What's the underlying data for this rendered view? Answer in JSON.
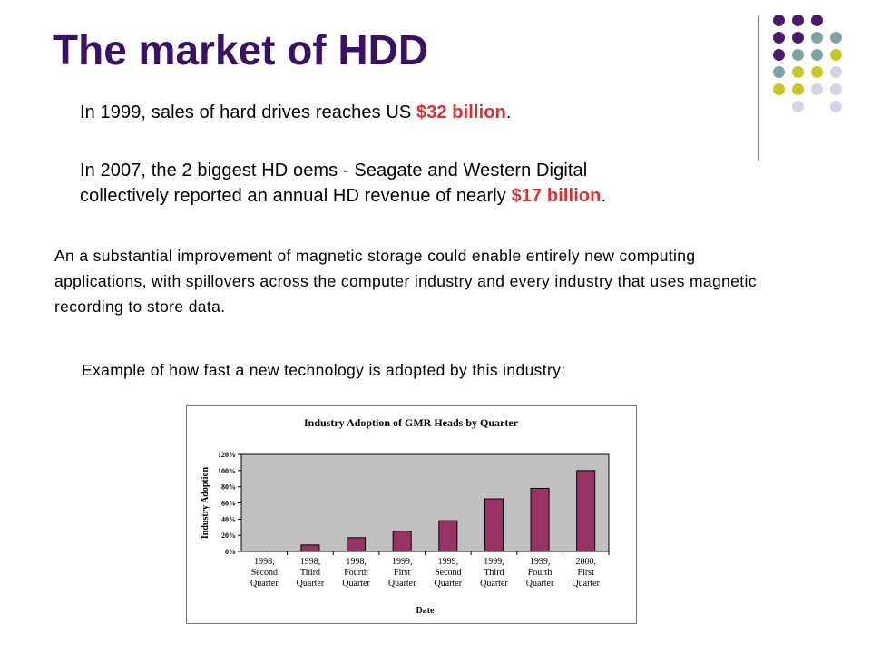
{
  "slide": {
    "title": "The market of HDD",
    "para1": {
      "prefix": "In 1999, sales of hard drives reaches US ",
      "highlight": "$32 billion",
      "suffix": "."
    },
    "para2": {
      "line1": "In 2007, the 2 biggest HD oems - Seagate and Western Digital",
      "line2_prefix": "collectively reported an annual HD revenue of nearly ",
      "highlight": "$17 billion",
      "suffix": "."
    },
    "para3": "An a substantial improvement of magnetic storage could enable entirely new computing applications, with spillovers across the computer industry and every industry that uses magnetic recording to store data.",
    "caption": "Example of how fast a new technology is adopted by this industry:",
    "colors": {
      "title": "#3b1166",
      "highlight": "#e32b2b",
      "bar": "#993366",
      "plot_bg": "#c0c0c0",
      "dot_purple": "#4b1a6b",
      "dot_teal": "#7fa3a3",
      "dot_lime": "#c8c824",
      "dot_lavender": "#d4d4e6"
    }
  },
  "chart_data": {
    "type": "bar",
    "title": "Industry Adoption of GMR Heads by Quarter",
    "xlabel": "Date",
    "ylabel": "Industry Adoption",
    "ylim": [
      0,
      120
    ],
    "yticks": [
      "0%",
      "20%",
      "40%",
      "60%",
      "80%",
      "100%",
      "120%"
    ],
    "categories": [
      [
        "1998,",
        "Second",
        "Quarter"
      ],
      [
        "1998,",
        "Third",
        "Quarter"
      ],
      [
        "1998,",
        "Fourth",
        "Quarter"
      ],
      [
        "1999,",
        "First",
        "Quarter"
      ],
      [
        "1999,",
        "Second",
        "Quarter"
      ],
      [
        "1999,",
        "Third",
        "Quarter"
      ],
      [
        "1999,",
        "Fourth",
        "Quarter"
      ],
      [
        "2000,",
        "First",
        "Quarter"
      ]
    ],
    "values": [
      0,
      8,
      17,
      25,
      38,
      65,
      78,
      100
    ],
    "grid": false,
    "legend": "none"
  }
}
